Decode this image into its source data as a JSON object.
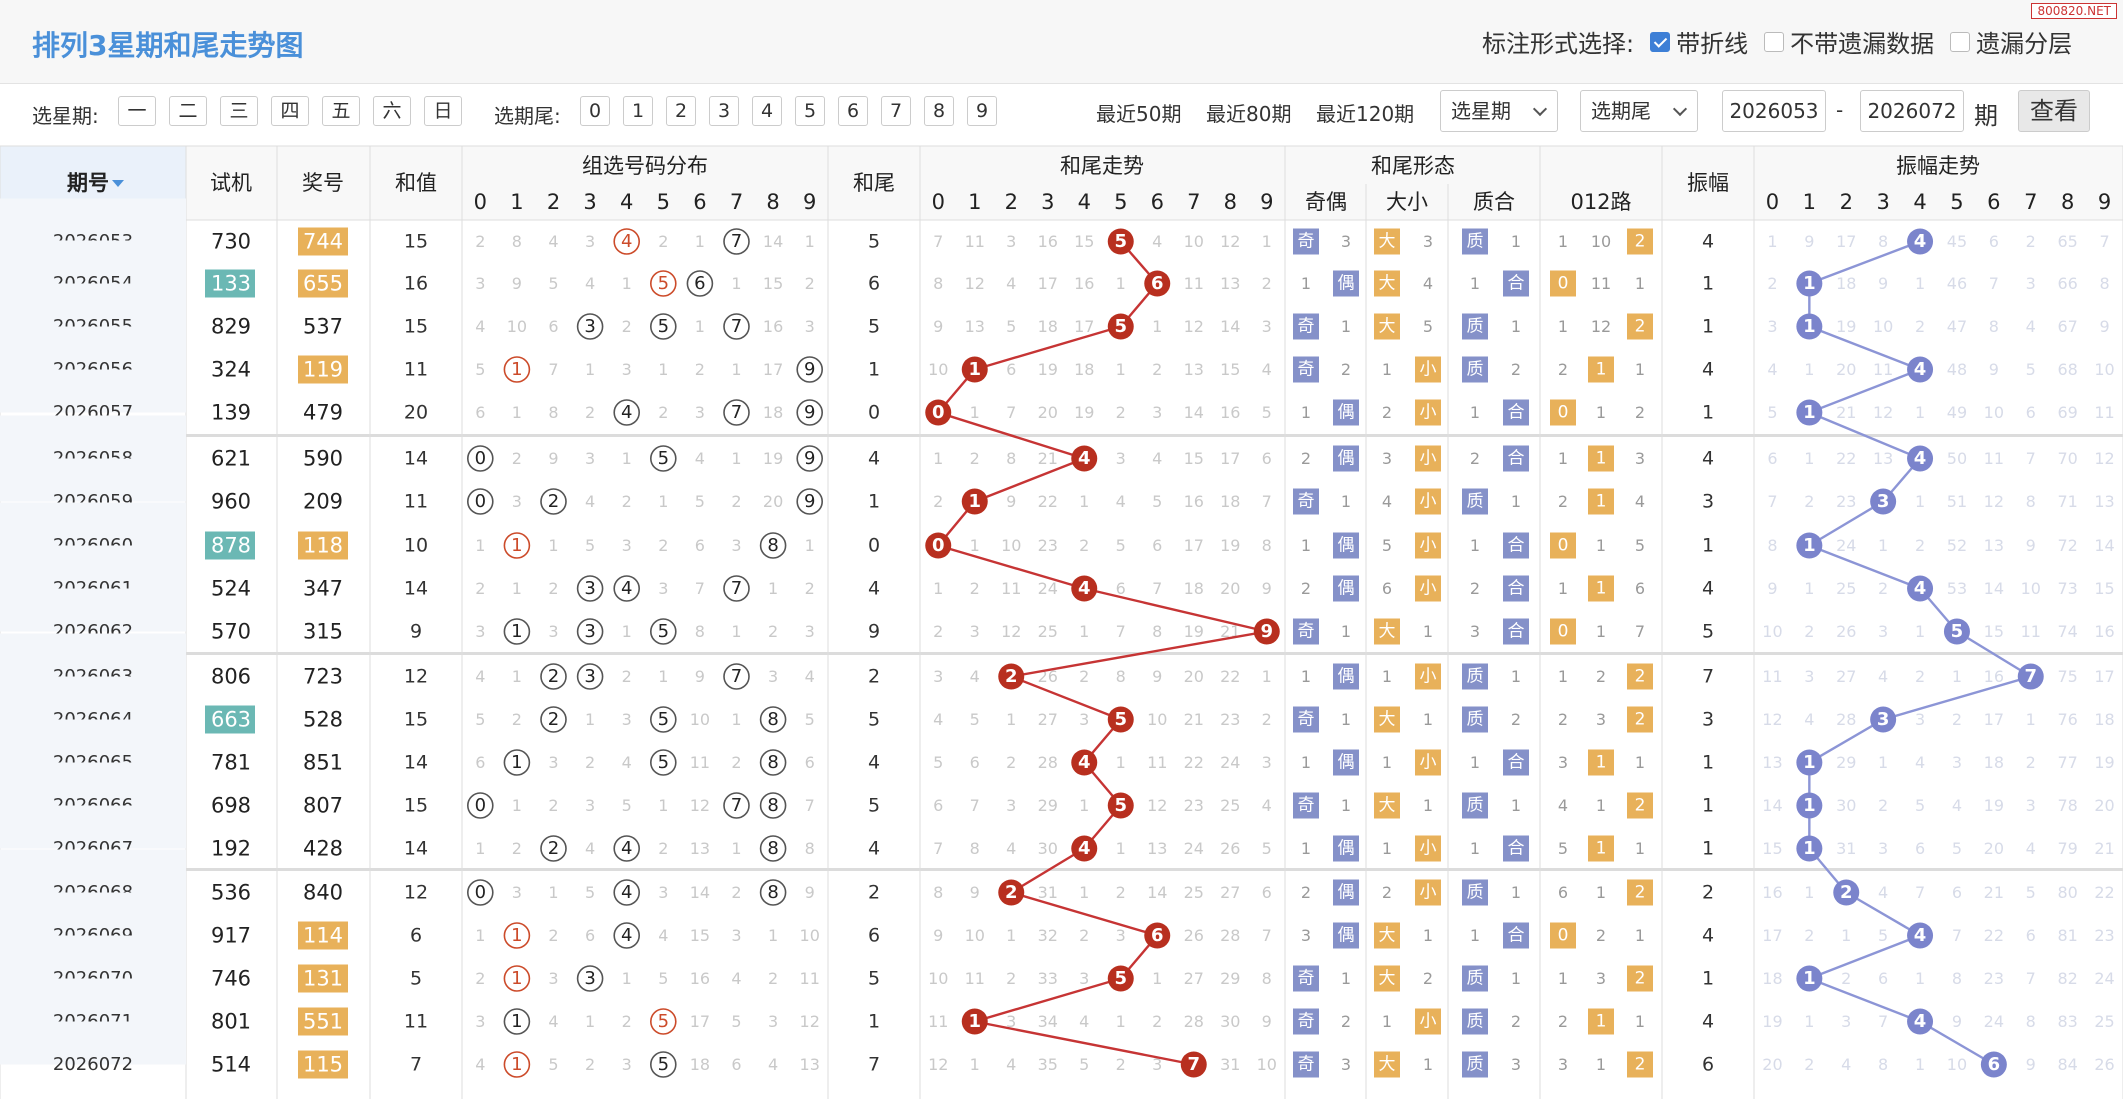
{
  "title": "排列3星期和尾走势图",
  "brand": "800820.NET",
  "mark_label": "标注形式选择:",
  "mark_opts": [
    {
      "label": "带折线",
      "checked": true
    },
    {
      "label": "不带遗漏数据",
      "checked": false
    },
    {
      "label": "遗漏分层",
      "checked": false
    }
  ],
  "week_label": "选星期:",
  "weekdays": [
    "一",
    "二",
    "三",
    "四",
    "五",
    "六",
    "日"
  ],
  "tail_label": "选期尾:",
  "tails": [
    "0",
    "1",
    "2",
    "3",
    "4",
    "5",
    "6",
    "7",
    "8",
    "9"
  ],
  "periods": [
    "最近50期",
    "最近80期",
    "最近120期"
  ],
  "week_select": "选星期",
  "tail_select": "选期尾",
  "range_from": "2026053",
  "range_sep": "-",
  "range_to": "2026072",
  "range_unit": "期",
  "query": "查看",
  "headers": {
    "period": "期号",
    "trial": "试机",
    "prize": "奖号",
    "sum": "和值",
    "dist": "组选号码分布",
    "tail": "和尾",
    "trend": "和尾走势",
    "form": "和尾形态",
    "parity": "奇偶",
    "size": "大小",
    "prime": "质合",
    "route": "012路",
    "amp": "振幅",
    "amptrend": "振幅走势"
  },
  "digits": [
    "0",
    "1",
    "2",
    "3",
    "4",
    "5",
    "6",
    "7",
    "8",
    "9"
  ],
  "colors": {
    "blue": "#4a90d9",
    "orange": "#e8b15a",
    "teal": "#6bb8b4",
    "red": "#b82f1f",
    "purple": "#7b84cc",
    "bluebadge": "#8591c9"
  },
  "rows": [
    {
      "p": "2026053",
      "t": "730",
      "tb": false,
      "n": "744",
      "nb": true,
      "s": "15",
      "h": [
        "2",
        "8",
        "4",
        "3",
        "4",
        "2",
        "1",
        "7",
        "14",
        "1"
      ],
      "hc": [
        4,
        7
      ],
      "hr": [
        4
      ],
      "tail": "5",
      "tr": [
        "7",
        "11",
        "3",
        "16",
        "15",
        "5",
        "4",
        "10",
        "12",
        "1"
      ],
      "oe": [
        "奇",
        "3"
      ],
      "bs": [
        "大",
        "3"
      ],
      "pr": [
        "质",
        "1"
      ],
      "rt": [
        "1",
        "10",
        "2"
      ],
      "ai": 2,
      "amp": "4",
      "am": [
        "1",
        "9",
        "17",
        "8",
        "4",
        "45",
        "6",
        "2",
        "65",
        "7"
      ]
    },
    {
      "p": "2026054",
      "t": "133",
      "tb": true,
      "n": "655",
      "nb": true,
      "s": "16",
      "h": [
        "3",
        "9",
        "5",
        "4",
        "1",
        "5",
        "6",
        "1",
        "15",
        "2"
      ],
      "hc": [
        5,
        6
      ],
      "hr": [
        5
      ],
      "tail": "6",
      "tr": [
        "8",
        "12",
        "4",
        "17",
        "16",
        "1",
        "6",
        "11",
        "13",
        "2"
      ],
      "oe": [
        "1",
        "偶"
      ],
      "bs": [
        "大",
        "4"
      ],
      "pr": [
        "1",
        "合"
      ],
      "rt": [
        "0",
        "11",
        "1"
      ],
      "ai": 0,
      "amp": "1",
      "am": [
        "2",
        "1",
        "18",
        "9",
        "1",
        "46",
        "7",
        "3",
        "66",
        "8"
      ]
    },
    {
      "p": "2026055",
      "t": "829",
      "tb": false,
      "n": "537",
      "nb": false,
      "s": "15",
      "h": [
        "4",
        "10",
        "6",
        "3",
        "2",
        "5",
        "1",
        "7",
        "16",
        "3"
      ],
      "hc": [
        3,
        5,
        7
      ],
      "hr": [],
      "tail": "5",
      "tr": [
        "9",
        "13",
        "5",
        "18",
        "17",
        "5",
        "1",
        "12",
        "14",
        "3"
      ],
      "oe": [
        "奇",
        "1"
      ],
      "bs": [
        "大",
        "5"
      ],
      "pr": [
        "质",
        "1"
      ],
      "rt": [
        "1",
        "12",
        "2"
      ],
      "ai": 2,
      "amp": "1",
      "am": [
        "3",
        "1",
        "19",
        "10",
        "2",
        "47",
        "8",
        "4",
        "67",
        "9"
      ]
    },
    {
      "p": "2026056",
      "t": "324",
      "tb": false,
      "n": "119",
      "nb": true,
      "s": "11",
      "h": [
        "5",
        "1",
        "7",
        "1",
        "3",
        "1",
        "2",
        "1",
        "17",
        "9"
      ],
      "hc": [
        1,
        9
      ],
      "hr": [
        1
      ],
      "tail": "1",
      "tr": [
        "10",
        "1",
        "6",
        "19",
        "18",
        "1",
        "2",
        "13",
        "15",
        "4"
      ],
      "oe": [
        "奇",
        "2"
      ],
      "bs": [
        "1",
        "小"
      ],
      "pr": [
        "质",
        "2"
      ],
      "rt": [
        "2",
        "1",
        "1"
      ],
      "ai": 1,
      "amp": "4",
      "am": [
        "4",
        "1",
        "20",
        "11",
        "4",
        "48",
        "9",
        "5",
        "68",
        "10"
      ]
    },
    {
      "p": "2026057",
      "t": "139",
      "tb": false,
      "n": "479",
      "nb": false,
      "s": "20",
      "h": [
        "6",
        "1",
        "8",
        "2",
        "4",
        "2",
        "3",
        "7",
        "18",
        "9"
      ],
      "hc": [
        4,
        7,
        9
      ],
      "hr": [],
      "tail": "0",
      "tr": [
        "0",
        "1",
        "7",
        "20",
        "19",
        "2",
        "3",
        "14",
        "16",
        "5"
      ],
      "oe": [
        "1",
        "偶"
      ],
      "bs": [
        "2",
        "小"
      ],
      "pr": [
        "1",
        "合"
      ],
      "rt": [
        "0",
        "1",
        "2"
      ],
      "ai": 0,
      "amp": "1",
      "am": [
        "5",
        "1",
        "21",
        "12",
        "1",
        "49",
        "10",
        "6",
        "69",
        "11"
      ]
    },
    {
      "p": "2026058",
      "t": "621",
      "tb": false,
      "n": "590",
      "nb": false,
      "s": "14",
      "h": [
        "0",
        "2",
        "9",
        "3",
        "1",
        "5",
        "4",
        "1",
        "19",
        "9"
      ],
      "hc": [
        0,
        5,
        9
      ],
      "hr": [],
      "tail": "4",
      "tr": [
        "1",
        "2",
        "8",
        "21",
        "4",
        "3",
        "4",
        "15",
        "17",
        "6"
      ],
      "oe": [
        "2",
        "偶"
      ],
      "bs": [
        "3",
        "小"
      ],
      "pr": [
        "2",
        "合"
      ],
      "rt": [
        "1",
        "1",
        "3"
      ],
      "ai": 1,
      "amp": "4",
      "am": [
        "6",
        "1",
        "22",
        "13",
        "4",
        "50",
        "11",
        "7",
        "70",
        "12"
      ]
    },
    {
      "p": "2026059",
      "t": "960",
      "tb": false,
      "n": "209",
      "nb": false,
      "s": "11",
      "h": [
        "0",
        "3",
        "2",
        "4",
        "2",
        "1",
        "5",
        "2",
        "20",
        "9"
      ],
      "hc": [
        0,
        2,
        9
      ],
      "hr": [],
      "tail": "1",
      "tr": [
        "2",
        "1",
        "9",
        "22",
        "1",
        "4",
        "5",
        "16",
        "18",
        "7"
      ],
      "oe": [
        "奇",
        "1"
      ],
      "bs": [
        "4",
        "小"
      ],
      "pr": [
        "质",
        "1"
      ],
      "rt": [
        "2",
        "1",
        "4"
      ],
      "ai": 1,
      "amp": "3",
      "am": [
        "7",
        "2",
        "23",
        "3",
        "1",
        "51",
        "12",
        "8",
        "71",
        "13"
      ]
    },
    {
      "p": "2026060",
      "t": "878",
      "tb": true,
      "n": "118",
      "nb": true,
      "s": "10",
      "h": [
        "1",
        "1",
        "1",
        "5",
        "3",
        "2",
        "6",
        "3",
        "8",
        "1"
      ],
      "hc": [
        1,
        8
      ],
      "hr": [
        1
      ],
      "tail": "0",
      "tr": [
        "0",
        "1",
        "10",
        "23",
        "2",
        "5",
        "6",
        "17",
        "19",
        "8"
      ],
      "oe": [
        "1",
        "偶"
      ],
      "bs": [
        "5",
        "小"
      ],
      "pr": [
        "1",
        "合"
      ],
      "rt": [
        "0",
        "1",
        "5"
      ],
      "ai": 0,
      "amp": "1",
      "am": [
        "8",
        "1",
        "24",
        "1",
        "2",
        "52",
        "13",
        "9",
        "72",
        "14"
      ]
    },
    {
      "p": "2026061",
      "t": "524",
      "tb": false,
      "n": "347",
      "nb": false,
      "s": "14",
      "h": [
        "2",
        "1",
        "2",
        "3",
        "4",
        "3",
        "7",
        "7",
        "1",
        "2"
      ],
      "hc": [
        3,
        4,
        7
      ],
      "hr": [],
      "tail": "4",
      "tr": [
        "1",
        "2",
        "11",
        "24",
        "4",
        "6",
        "7",
        "18",
        "20",
        "9"
      ],
      "oe": [
        "2",
        "偶"
      ],
      "bs": [
        "6",
        "小"
      ],
      "pr": [
        "2",
        "合"
      ],
      "rt": [
        "1",
        "1",
        "6"
      ],
      "ai": 1,
      "amp": "4",
      "am": [
        "9",
        "1",
        "25",
        "2",
        "4",
        "53",
        "14",
        "10",
        "73",
        "15"
      ]
    },
    {
      "p": "2026062",
      "t": "570",
      "tb": false,
      "n": "315",
      "nb": false,
      "s": "9",
      "h": [
        "3",
        "1",
        "3",
        "3",
        "1",
        "5",
        "8",
        "1",
        "2",
        "3"
      ],
      "hc": [
        1,
        3,
        5
      ],
      "hr": [],
      "tail": "9",
      "tr": [
        "2",
        "3",
        "12",
        "25",
        "1",
        "7",
        "8",
        "19",
        "21",
        "9"
      ],
      "oe": [
        "奇",
        "1"
      ],
      "bs": [
        "大",
        "1"
      ],
      "pr": [
        "3",
        "合"
      ],
      "rt": [
        "0",
        "1",
        "7"
      ],
      "ai": 0,
      "amp": "5",
      "am": [
        "10",
        "2",
        "26",
        "3",
        "1",
        "5",
        "15",
        "11",
        "74",
        "16"
      ]
    },
    {
      "p": "2026063",
      "t": "806",
      "tb": false,
      "n": "723",
      "nb": false,
      "s": "12",
      "h": [
        "4",
        "1",
        "2",
        "3",
        "2",
        "1",
        "9",
        "7",
        "3",
        "4"
      ],
      "hc": [
        2,
        3,
        7
      ],
      "hr": [],
      "tail": "2",
      "tr": [
        "3",
        "4",
        "2",
        "26",
        "2",
        "8",
        "9",
        "20",
        "22",
        "1"
      ],
      "oe": [
        "1",
        "偶"
      ],
      "bs": [
        "1",
        "小"
      ],
      "pr": [
        "质",
        "1"
      ],
      "rt": [
        "1",
        "2",
        "2"
      ],
      "ai": 2,
      "amp": "7",
      "am": [
        "11",
        "3",
        "27",
        "4",
        "2",
        "1",
        "16",
        "7",
        "75",
        "17"
      ]
    },
    {
      "p": "2026064",
      "t": "663",
      "tb": true,
      "n": "528",
      "nb": false,
      "s": "15",
      "h": [
        "5",
        "2",
        "2",
        "1",
        "3",
        "5",
        "10",
        "1",
        "8",
        "5"
      ],
      "hc": [
        2,
        5,
        8
      ],
      "hr": [],
      "tail": "5",
      "tr": [
        "4",
        "5",
        "1",
        "27",
        "3",
        "5",
        "10",
        "21",
        "23",
        "2"
      ],
      "oe": [
        "奇",
        "1"
      ],
      "bs": [
        "大",
        "1"
      ],
      "pr": [
        "质",
        "2"
      ],
      "rt": [
        "2",
        "3",
        "2"
      ],
      "ai": 2,
      "amp": "3",
      "am": [
        "12",
        "4",
        "28",
        "3",
        "3",
        "2",
        "17",
        "1",
        "76",
        "18"
      ]
    },
    {
      "p": "2026065",
      "t": "781",
      "tb": false,
      "n": "851",
      "nb": false,
      "s": "14",
      "h": [
        "6",
        "1",
        "3",
        "2",
        "4",
        "5",
        "11",
        "2",
        "8",
        "6"
      ],
      "hc": [
        1,
        5,
        8
      ],
      "hr": [],
      "tail": "4",
      "tr": [
        "5",
        "6",
        "2",
        "28",
        "4",
        "1",
        "11",
        "22",
        "24",
        "3"
      ],
      "oe": [
        "1",
        "偶"
      ],
      "bs": [
        "1",
        "小"
      ],
      "pr": [
        "1",
        "合"
      ],
      "rt": [
        "3",
        "1",
        "1"
      ],
      "ai": 1,
      "amp": "1",
      "am": [
        "13",
        "1",
        "29",
        "1",
        "4",
        "3",
        "18",
        "2",
        "77",
        "19"
      ]
    },
    {
      "p": "2026066",
      "t": "698",
      "tb": false,
      "n": "807",
      "nb": false,
      "s": "15",
      "h": [
        "0",
        "1",
        "2",
        "3",
        "5",
        "1",
        "12",
        "7",
        "8",
        "7"
      ],
      "hc": [
        0,
        7,
        8
      ],
      "hr": [],
      "tail": "5",
      "tr": [
        "6",
        "7",
        "3",
        "29",
        "1",
        "5",
        "12",
        "23",
        "25",
        "4"
      ],
      "oe": [
        "奇",
        "1"
      ],
      "bs": [
        "大",
        "1"
      ],
      "pr": [
        "质",
        "1"
      ],
      "rt": [
        "4",
        "1",
        "2"
      ],
      "ai": 2,
      "amp": "1",
      "am": [
        "14",
        "1",
        "30",
        "2",
        "5",
        "4",
        "19",
        "3",
        "78",
        "20"
      ]
    },
    {
      "p": "2026067",
      "t": "192",
      "tb": false,
      "n": "428",
      "nb": false,
      "s": "14",
      "h": [
        "1",
        "2",
        "2",
        "4",
        "4",
        "2",
        "13",
        "1",
        "8",
        "8"
      ],
      "hc": [
        2,
        4,
        8
      ],
      "hr": [],
      "tail": "4",
      "tr": [
        "7",
        "8",
        "4",
        "30",
        "4",
        "1",
        "13",
        "24",
        "26",
        "5"
      ],
      "oe": [
        "1",
        "偶"
      ],
      "bs": [
        "1",
        "小"
      ],
      "pr": [
        "1",
        "合"
      ],
      "rt": [
        "5",
        "1",
        "1"
      ],
      "ai": 1,
      "amp": "1",
      "am": [
        "15",
        "1",
        "31",
        "3",
        "6",
        "5",
        "20",
        "4",
        "79",
        "21"
      ]
    },
    {
      "p": "2026068",
      "t": "536",
      "tb": false,
      "n": "840",
      "nb": false,
      "s": "12",
      "h": [
        "0",
        "3",
        "1",
        "5",
        "4",
        "3",
        "14",
        "2",
        "8",
        "9"
      ],
      "hc": [
        0,
        4,
        8
      ],
      "hr": [],
      "tail": "2",
      "tr": [
        "8",
        "9",
        "2",
        "31",
        "1",
        "2",
        "14",
        "25",
        "27",
        "6"
      ],
      "oe": [
        "2",
        "偶"
      ],
      "bs": [
        "2",
        "小"
      ],
      "pr": [
        "质",
        "1"
      ],
      "rt": [
        "6",
        "1",
        "2"
      ],
      "ai": 2,
      "amp": "2",
      "am": [
        "16",
        "1",
        "2",
        "4",
        "7",
        "6",
        "21",
        "5",
        "80",
        "22"
      ]
    },
    {
      "p": "2026069",
      "t": "917",
      "tb": false,
      "n": "114",
      "nb": true,
      "s": "6",
      "h": [
        "1",
        "1",
        "2",
        "6",
        "4",
        "4",
        "15",
        "3",
        "1",
        "10"
      ],
      "hc": [
        1,
        4
      ],
      "hr": [
        1
      ],
      "tail": "6",
      "tr": [
        "9",
        "10",
        "1",
        "32",
        "2",
        "3",
        "6",
        "26",
        "28",
        "7"
      ],
      "oe": [
        "3",
        "偶"
      ],
      "bs": [
        "大",
        "1"
      ],
      "pr": [
        "1",
        "合"
      ],
      "rt": [
        "0",
        "2",
        "1"
      ],
      "ai": 0,
      "amp": "4",
      "am": [
        "17",
        "2",
        "1",
        "5",
        "4",
        "7",
        "22",
        "6",
        "81",
        "23"
      ]
    },
    {
      "p": "2026070",
      "t": "746",
      "tb": false,
      "n": "131",
      "nb": true,
      "s": "5",
      "h": [
        "2",
        "1",
        "3",
        "3",
        "1",
        "5",
        "16",
        "4",
        "2",
        "11"
      ],
      "hc": [
        1,
        3
      ],
      "hr": [
        1
      ],
      "tail": "5",
      "tr": [
        "10",
        "11",
        "2",
        "33",
        "3",
        "5",
        "1",
        "27",
        "29",
        "8"
      ],
      "oe": [
        "奇",
        "1"
      ],
      "bs": [
        "大",
        "2"
      ],
      "pr": [
        "质",
        "1"
      ],
      "rt": [
        "1",
        "3",
        "2"
      ],
      "ai": 2,
      "amp": "1",
      "am": [
        "18",
        "1",
        "2",
        "6",
        "1",
        "8",
        "23",
        "7",
        "82",
        "24"
      ]
    },
    {
      "p": "2026071",
      "t": "801",
      "tb": false,
      "n": "551",
      "nb": true,
      "s": "11",
      "h": [
        "3",
        "1",
        "4",
        "1",
        "2",
        "5",
        "17",
        "5",
        "3",
        "12"
      ],
      "hc": [
        1,
        5
      ],
      "hr": [
        5
      ],
      "tail": "1",
      "tr": [
        "11",
        "1",
        "3",
        "34",
        "4",
        "1",
        "2",
        "28",
        "30",
        "9"
      ],
      "oe": [
        "奇",
        "2"
      ],
      "bs": [
        "1",
        "小"
      ],
      "pr": [
        "质",
        "2"
      ],
      "rt": [
        "2",
        "1",
        "1"
      ],
      "ai": 1,
      "amp": "4",
      "am": [
        "19",
        "1",
        "3",
        "7",
        "4",
        "9",
        "24",
        "8",
        "83",
        "25"
      ]
    },
    {
      "p": "2026072",
      "t": "514",
      "tb": false,
      "n": "115",
      "nb": true,
      "s": "7",
      "h": [
        "4",
        "1",
        "5",
        "2",
        "3",
        "5",
        "18",
        "6",
        "4",
        "13"
      ],
      "hc": [
        1,
        5
      ],
      "hr": [
        1
      ],
      "tail": "7",
      "tr": [
        "12",
        "1",
        "4",
        "35",
        "5",
        "2",
        "3",
        "7",
        "31",
        "10"
      ],
      "oe": [
        "奇",
        "3"
      ],
      "bs": [
        "大",
        "1"
      ],
      "pr": [
        "质",
        "3"
      ],
      "rt": [
        "3",
        "1",
        "2"
      ],
      "ai": 2,
      "amp": "6",
      "am": [
        "20",
        "2",
        "4",
        "8",
        "1",
        "10",
        "6",
        "9",
        "84",
        "26"
      ]
    }
  ]
}
